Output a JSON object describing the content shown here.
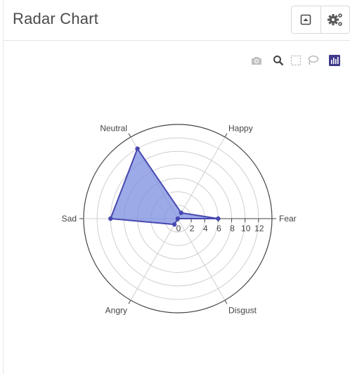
{
  "header": {
    "title": "Radar Chart",
    "buttons": [
      {
        "icon": "expand-up-icon"
      },
      {
        "icon": "gears-icon"
      }
    ]
  },
  "modebar": {
    "buttons": [
      {
        "icon": "camera-icon",
        "active": false
      },
      {
        "icon": "zoom-icon",
        "active": true
      },
      {
        "icon": "box-select-icon",
        "active": false
      },
      {
        "icon": "lasso-icon",
        "active": false
      },
      {
        "icon": "plotly-logo-icon",
        "active": true
      }
    ]
  },
  "colors": {
    "fill": "#7b8fe0",
    "line": "#4848b0",
    "marker": "#4848b0",
    "grid": "#cfcfcf",
    "outer_ring": "#444444",
    "text": "#444444",
    "brand": "#3f3a8a"
  },
  "chart_data": {
    "type": "radar",
    "categories": [
      "Fear",
      "Happy",
      "Neutral",
      "Sad",
      "Angry",
      "Disgust"
    ],
    "angles_deg": [
      0,
      60,
      120,
      180,
      240,
      300
    ],
    "values": [
      6,
      1,
      12,
      10,
      1,
      0
    ],
    "radial_ticks": [
      0,
      2,
      4,
      6,
      8,
      10,
      12
    ],
    "radial_range": [
      0,
      14
    ],
    "title": "Radar Chart"
  }
}
